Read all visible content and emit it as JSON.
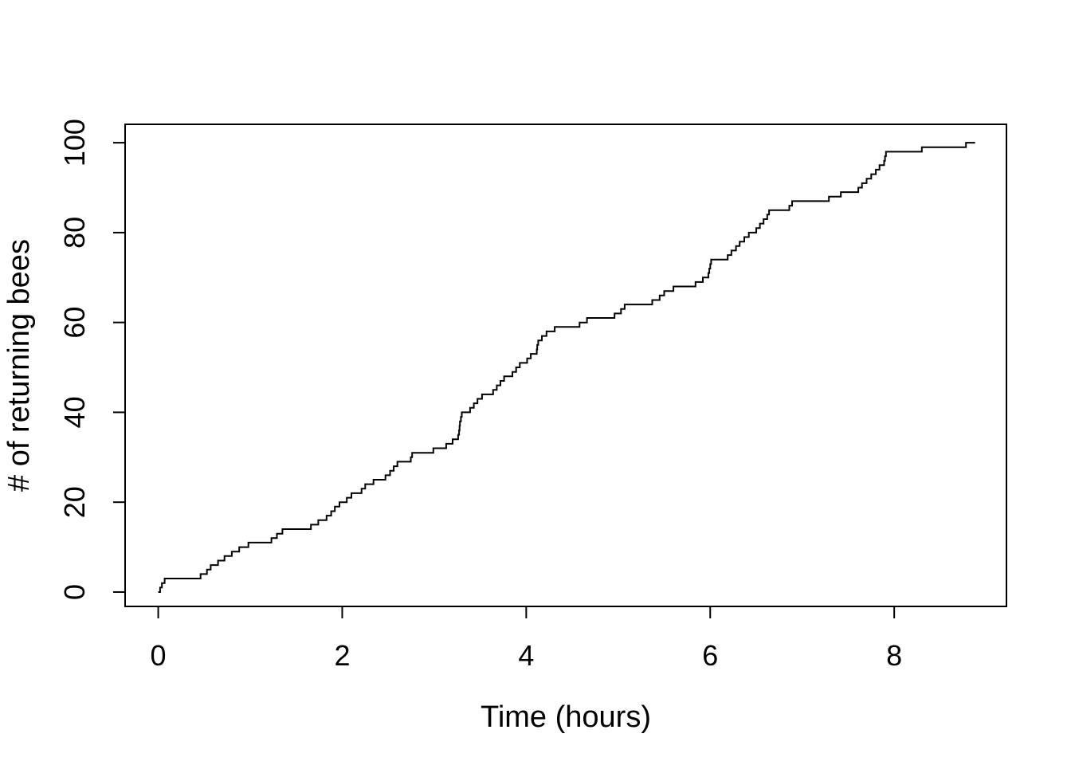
{
  "figure": {
    "background_color": "#ffffff",
    "foreground_color": "#000000"
  },
  "chart_data": {
    "type": "line",
    "subtype": "cumulative-step",
    "title": "",
    "xlabel": "Time (hours)",
    "ylabel": "# of returning bees",
    "x_ticks": [
      0,
      2,
      4,
      6,
      8
    ],
    "y_ticks": [
      0,
      20,
      40,
      60,
      80,
      100
    ],
    "xlim": [
      -0.36,
      9.22
    ],
    "ylim": [
      -3.2,
      104.1
    ],
    "grid": "off",
    "legend": "none",
    "line_color": "#000000",
    "start_time": 0.0,
    "end_time": 8.88,
    "start_count": 0,
    "final_count": 100,
    "series": [
      {
        "name": "returning bees cumulative count",
        "description": "count steps from 0 to 100; event_times[i] is the time the count reaches i+1",
        "event_times": [
          0.02,
          0.04,
          0.07,
          0.46,
          0.53,
          0.57,
          0.65,
          0.72,
          0.8,
          0.88,
          0.98,
          1.23,
          1.29,
          1.35,
          1.66,
          1.74,
          1.83,
          1.88,
          1.92,
          1.97,
          2.05,
          2.1,
          2.21,
          2.25,
          2.34,
          2.47,
          2.52,
          2.56,
          2.6,
          2.745,
          2.76,
          2.99,
          3.13,
          3.2,
          3.26,
          3.27,
          3.275,
          3.28,
          3.29,
          3.3,
          3.39,
          3.43,
          3.47,
          3.52,
          3.64,
          3.68,
          3.72,
          3.76,
          3.85,
          3.89,
          3.93,
          4.01,
          4.05,
          4.115,
          4.12,
          4.13,
          4.17,
          4.22,
          4.31,
          4.58,
          4.66,
          4.96,
          5.03,
          5.07,
          5.37,
          5.45,
          5.5,
          5.6,
          5.84,
          5.92,
          5.98,
          5.99,
          6.0,
          6.01,
          6.19,
          6.23,
          6.28,
          6.32,
          6.37,
          6.42,
          6.5,
          6.54,
          6.58,
          6.62,
          6.64,
          6.86,
          6.89,
          7.29,
          7.42,
          7.61,
          7.65,
          7.7,
          7.75,
          7.8,
          7.84,
          7.89,
          7.9,
          7.91,
          8.3,
          8.78
        ]
      }
    ]
  }
}
